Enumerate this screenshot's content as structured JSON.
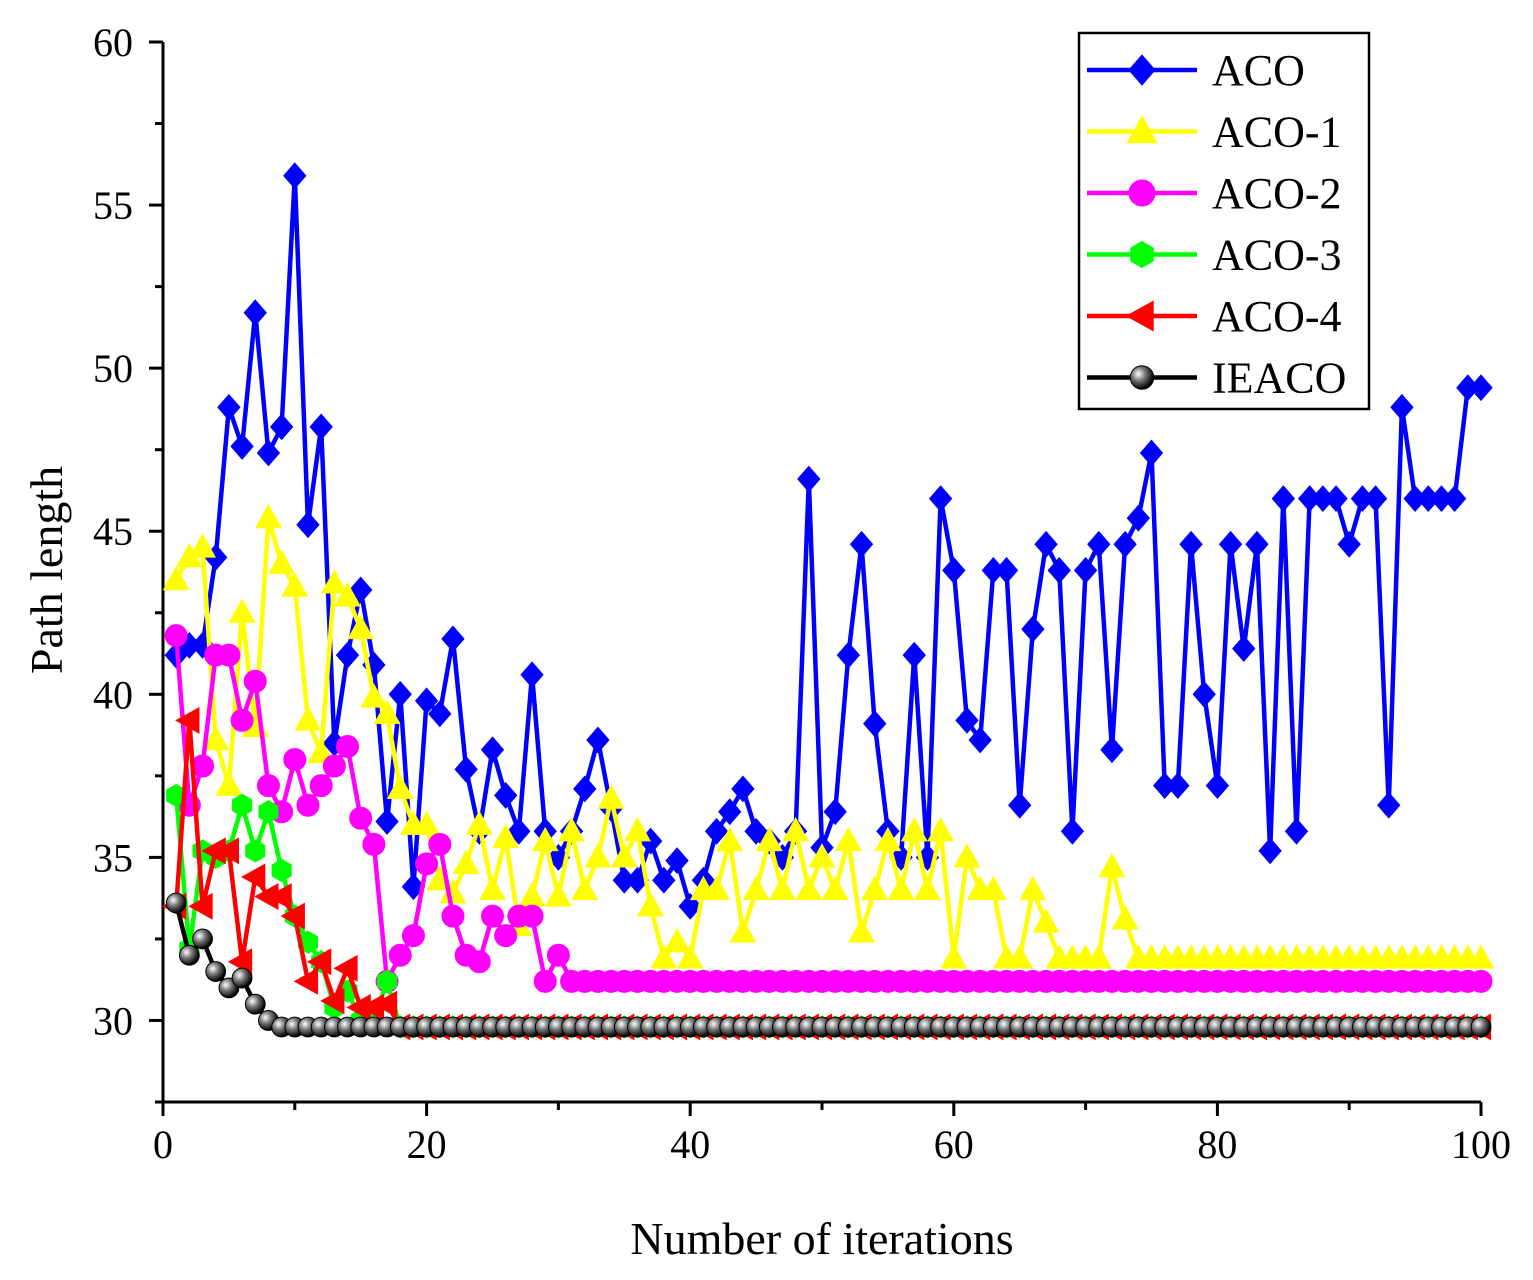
{
  "chart_data": {
    "type": "line",
    "title": "",
    "xlabel": "Number of iterations",
    "ylabel": "Path length",
    "xlim": [
      0,
      100
    ],
    "ylim": [
      27.5,
      60
    ],
    "xticks": [
      0,
      20,
      40,
      60,
      80,
      100
    ],
    "yticks": [
      30,
      35,
      40,
      45,
      50,
      55,
      60
    ],
    "grid": false,
    "legend_position": "top-right",
    "x": [
      1,
      2,
      3,
      4,
      5,
      6,
      7,
      8,
      9,
      10,
      11,
      12,
      13,
      14,
      15,
      16,
      17,
      18,
      19,
      20,
      21,
      22,
      23,
      24,
      25,
      26,
      27,
      28,
      29,
      30,
      31,
      32,
      33,
      34,
      35,
      36,
      37,
      38,
      39,
      40,
      41,
      42,
      43,
      44,
      45,
      46,
      47,
      48,
      49,
      50,
      51,
      52,
      53,
      54,
      55,
      56,
      57,
      58,
      59,
      60,
      61,
      62,
      63,
      64,
      65,
      66,
      67,
      68,
      69,
      70,
      71,
      72,
      73,
      74,
      75,
      76,
      77,
      78,
      79,
      80,
      81,
      82,
      83,
      84,
      85,
      86,
      87,
      88,
      89,
      90,
      91,
      92,
      93,
      94,
      95,
      96,
      97,
      98,
      99,
      100
    ],
    "series": [
      {
        "name": "ACO",
        "color": "#0000ff",
        "marker": "diamond",
        "values": [
          41.2,
          41.5,
          41.5,
          44.2,
          48.8,
          47.6,
          51.7,
          47.4,
          48.2,
          55.9,
          45.2,
          48.2,
          38.5,
          41.2,
          43.2,
          40.9,
          36.1,
          40.0,
          34.1,
          39.8,
          39.4,
          41.7,
          37.7,
          35.8,
          38.3,
          36.9,
          35.8,
          40.6,
          35.8,
          35.0,
          35.8,
          37.1,
          38.6,
          36.5,
          34.3,
          34.3,
          35.5,
          34.3,
          34.9,
          33.5,
          34.3,
          35.8,
          36.4,
          37.1,
          35.8,
          35.5,
          35.0,
          35.8,
          46.6,
          35.3,
          36.4,
          41.2,
          44.6,
          39.1,
          35.8,
          35.0,
          41.2,
          35.0,
          46.0,
          43.8,
          39.2,
          38.6,
          43.8,
          43.8,
          36.6,
          42.0,
          44.6,
          43.8,
          35.8,
          43.8,
          44.6,
          38.3,
          44.6,
          45.4,
          47.4,
          37.2,
          37.2,
          44.6,
          40.0,
          37.2,
          44.6,
          41.4,
          44.6,
          35.2,
          46.0,
          35.8,
          46.0,
          46.0,
          46.0,
          44.6,
          46.0,
          46.0,
          36.6,
          48.8,
          46.0,
          46.0,
          46.0,
          46.0,
          49.4,
          49.4
        ]
      },
      {
        "name": "ACO-1",
        "color": "#ffff00",
        "marker": "triangle-up",
        "values": [
          43.5,
          44.2,
          44.5,
          38.6,
          37.2,
          42.5,
          39.0,
          45.4,
          44.0,
          43.3,
          39.2,
          38.2,
          43.4,
          43.0,
          42.0,
          39.9,
          39.4,
          37.1,
          36.0,
          36.0,
          34.3,
          33.9,
          34.8,
          36.0,
          34.0,
          35.6,
          32.9,
          33.8,
          35.5,
          33.8,
          35.8,
          34.0,
          35.0,
          36.8,
          35.0,
          35.8,
          33.5,
          31.9,
          32.4,
          31.9,
          34.0,
          34.0,
          35.5,
          32.7,
          34.0,
          35.5,
          34.0,
          35.8,
          34.0,
          35.0,
          34.0,
          35.5,
          32.7,
          34.0,
          35.5,
          34.0,
          35.8,
          34.0,
          35.8,
          31.9,
          35.0,
          34.0,
          34.0,
          31.9,
          31.9,
          34.0,
          33.0,
          31.9,
          31.9,
          31.9,
          31.9,
          34.7,
          33.1,
          31.9,
          31.9,
          31.9,
          31.9,
          31.9,
          31.9,
          31.9,
          31.9,
          31.9,
          31.9,
          31.9,
          31.9,
          31.9,
          31.9,
          31.9,
          31.9,
          31.9,
          31.9,
          31.9,
          31.9,
          31.9,
          31.9,
          31.9,
          31.9,
          31.9,
          31.9,
          31.9
        ]
      },
      {
        "name": "ACO-2",
        "color": "#ff00ff",
        "marker": "circle",
        "values": [
          41.8,
          36.6,
          37.8,
          41.2,
          41.2,
          39.2,
          40.4,
          37.2,
          36.4,
          38.0,
          36.6,
          37.2,
          37.8,
          38.4,
          36.2,
          35.4,
          31.2,
          32.0,
          32.6,
          34.8,
          35.4,
          33.2,
          32.0,
          31.8,
          33.2,
          32.6,
          33.2,
          33.2,
          31.2,
          32.0,
          31.2,
          31.2,
          31.2,
          31.2,
          31.2,
          31.2,
          31.2,
          31.2,
          31.2,
          31.2,
          31.2,
          31.2,
          31.2,
          31.2,
          31.2,
          31.2,
          31.2,
          31.2,
          31.2,
          31.2,
          31.2,
          31.2,
          31.2,
          31.2,
          31.2,
          31.2,
          31.2,
          31.2,
          31.2,
          31.2,
          31.2,
          31.2,
          31.2,
          31.2,
          31.2,
          31.2,
          31.2,
          31.2,
          31.2,
          31.2,
          31.2,
          31.2,
          31.2,
          31.2,
          31.2,
          31.2,
          31.2,
          31.2,
          31.2,
          31.2,
          31.2,
          31.2,
          31.2,
          31.2,
          31.2,
          31.2,
          31.2,
          31.2,
          31.2,
          31.2,
          31.2,
          31.2,
          31.2,
          31.2,
          31.2,
          31.2,
          31.2,
          31.2,
          31.2,
          31.2
        ]
      },
      {
        "name": "ACO-3",
        "color": "#00ff00",
        "marker": "hexagon",
        "values": [
          36.9,
          32.2,
          35.2,
          35.0,
          35.2,
          36.6,
          35.2,
          36.4,
          34.6,
          33.2,
          32.4,
          31.8,
          30.4,
          30.9,
          30.0,
          30.0,
          31.2,
          29.8,
          29.8,
          29.8,
          29.8,
          29.8,
          29.8,
          29.8,
          29.8,
          29.8,
          29.8,
          29.8,
          29.8,
          29.8,
          29.8,
          29.8,
          29.8,
          29.8,
          29.8,
          29.8,
          29.8,
          29.8,
          29.8,
          29.8,
          29.8,
          29.8,
          29.8,
          29.8,
          29.8,
          29.8,
          29.8,
          29.8,
          29.8,
          29.8,
          29.8,
          29.8,
          29.8,
          29.8,
          29.8,
          29.8,
          29.8,
          29.8,
          29.8,
          29.8,
          29.8,
          29.8,
          29.8,
          29.8,
          29.8,
          29.8,
          29.8,
          29.8,
          29.8,
          29.8,
          29.8,
          29.8,
          29.8,
          29.8,
          29.8,
          29.8,
          29.8,
          29.8,
          29.8,
          29.8,
          29.8,
          29.8,
          29.8,
          29.8,
          29.8,
          29.8,
          29.8,
          29.8,
          29.8,
          29.8,
          29.8,
          29.8,
          29.8,
          29.8,
          29.8,
          29.8,
          29.8,
          29.8,
          29.8,
          29.8
        ]
      },
      {
        "name": "ACO-4",
        "color": "#ff0000",
        "marker": "triangle-left",
        "values": [
          33.5,
          39.2,
          33.5,
          35.2,
          35.2,
          31.8,
          34.4,
          33.8,
          33.8,
          33.2,
          31.2,
          31.8,
          30.6,
          31.6,
          30.4,
          30.4,
          30.5,
          29.8,
          29.8,
          29.8,
          29.8,
          29.8,
          29.8,
          29.8,
          29.8,
          29.8,
          29.8,
          29.8,
          29.8,
          29.8,
          29.8,
          29.8,
          29.8,
          29.8,
          29.8,
          29.8,
          29.8,
          29.8,
          29.8,
          29.8,
          29.8,
          29.8,
          29.8,
          29.8,
          29.8,
          29.8,
          29.8,
          29.8,
          29.8,
          29.8,
          29.8,
          29.8,
          29.8,
          29.8,
          29.8,
          29.8,
          29.8,
          29.8,
          29.8,
          29.8,
          29.8,
          29.8,
          29.8,
          29.8,
          29.8,
          29.8,
          29.8,
          29.8,
          29.8,
          29.8,
          29.8,
          29.8,
          29.8,
          29.8,
          29.8,
          29.8,
          29.8,
          29.8,
          29.8,
          29.8,
          29.8,
          29.8,
          29.8,
          29.8,
          29.8,
          29.8,
          29.8,
          29.8,
          29.8,
          29.8,
          29.8,
          29.8,
          29.8,
          29.8,
          29.8,
          29.8,
          29.8,
          29.8,
          29.8,
          29.8
        ]
      },
      {
        "name": "IEACO",
        "color": "#000000",
        "marker": "sphere",
        "values": [
          33.6,
          32.0,
          32.5,
          31.5,
          31.0,
          31.3,
          30.5,
          30.0,
          29.8,
          29.8,
          29.8,
          29.8,
          29.8,
          29.8,
          29.8,
          29.8,
          29.8,
          29.8,
          29.8,
          29.8,
          29.8,
          29.8,
          29.8,
          29.8,
          29.8,
          29.8,
          29.8,
          29.8,
          29.8,
          29.8,
          29.8,
          29.8,
          29.8,
          29.8,
          29.8,
          29.8,
          29.8,
          29.8,
          29.8,
          29.8,
          29.8,
          29.8,
          29.8,
          29.8,
          29.8,
          29.8,
          29.8,
          29.8,
          29.8,
          29.8,
          29.8,
          29.8,
          29.8,
          29.8,
          29.8,
          29.8,
          29.8,
          29.8,
          29.8,
          29.8,
          29.8,
          29.8,
          29.8,
          29.8,
          29.8,
          29.8,
          29.8,
          29.8,
          29.8,
          29.8,
          29.8,
          29.8,
          29.8,
          29.8,
          29.8,
          29.8,
          29.8,
          29.8,
          29.8,
          29.8,
          29.8,
          29.8,
          29.8,
          29.8,
          29.8,
          29.8,
          29.8,
          29.8,
          29.8,
          29.8,
          29.8,
          29.8,
          29.8,
          29.8,
          29.8,
          29.8,
          29.8,
          29.8,
          29.8,
          29.8
        ]
      }
    ]
  }
}
